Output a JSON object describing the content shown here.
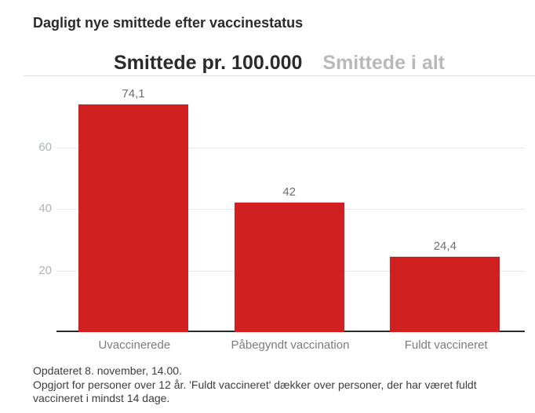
{
  "page": {
    "title": "Dagligt nye smittede efter vaccinestatus"
  },
  "tabs": [
    {
      "label": "Smittede pr. 100.000",
      "active": true
    },
    {
      "label": "Smittede i alt",
      "active": false
    }
  ],
  "chart_data": {
    "type": "bar",
    "title": "Smittede pr. 100.000",
    "categories": [
      "Uvaccinerede",
      "Påbegyndt vaccination",
      "Fuldt vaccineret"
    ],
    "values": [
      74.1,
      42,
      24.4
    ],
    "value_labels": [
      "74,1",
      "42",
      "24,4"
    ],
    "yticks": [
      20,
      40,
      60
    ],
    "ylim": [
      0,
      80
    ],
    "xlabel": "",
    "ylabel": "",
    "grid": true,
    "legend": false,
    "bar_color": "#d12020"
  },
  "footer": {
    "updated": "Opdateret 8. november, 14.00.",
    "note": "Opgjort for personer over 12 år. 'Fuldt vaccineret' dækker over personer, der har været fuldt vaccineret i mindst 14 dage."
  },
  "colors": {
    "bar": "#d12020",
    "title_text": "#2b2b2b",
    "tab_active": "#2b2b2b",
    "tab_inactive": "#b9b9b9",
    "gridline": "#e8e8e8",
    "axis_line": "#2b2b2b",
    "y_tick_text": "#b1b5b5",
    "x_tick_text": "#7c7c7c",
    "value_text": "#6f6f6f",
    "footer_text": "#3d3d3d"
  }
}
